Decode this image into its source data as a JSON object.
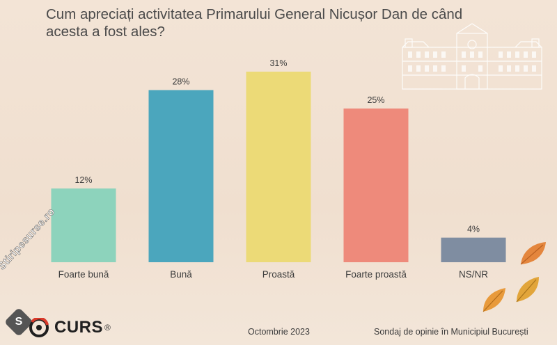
{
  "chart_data": {
    "type": "bar",
    "title": "Cum apreciați activitatea Primarului General Nicușor Dan de când acesta a fost ales?",
    "categories": [
      "Foarte bună",
      "Bună",
      "Proastă",
      "Foarte proastă",
      "NS/NR"
    ],
    "values": [
      12,
      28,
      31,
      25,
      4
    ],
    "data_labels": [
      "12%",
      "28%",
      "31%",
      "25%",
      "4%"
    ],
    "colors": [
      "#8dd3bc",
      "#4ba6bd",
      "#ecda77",
      "#ee8a7b",
      "#7f8da1"
    ],
    "ylim": [
      0,
      31
    ],
    "grid": false,
    "legend": "none"
  },
  "footer": {
    "brand": "CURS",
    "brand_mark": "®",
    "month": "Octombrie 2023",
    "survey": "Sondaj de opinie în Municipiul București"
  },
  "watermark": {
    "text": "Stiripesurse.ro",
    "icon_letter": "S"
  },
  "icons": [
    "building-illustration-icon",
    "autumn-leaf-icon",
    "curs-logo-icon"
  ]
}
